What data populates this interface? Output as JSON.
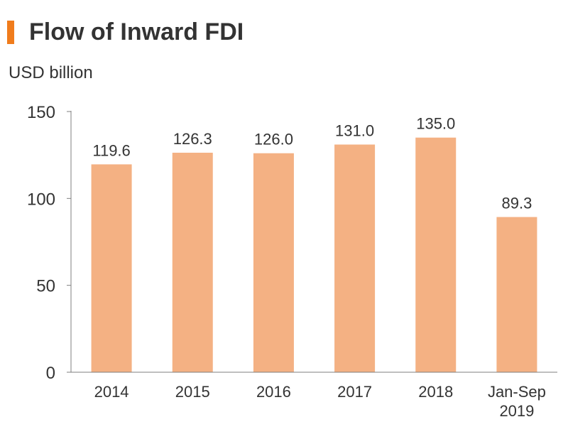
{
  "title": "Flow of Inward FDI",
  "colors": {
    "accent": "#f07c1c",
    "bar": "#f4b183",
    "axis": "#7f7f7f",
    "text": "#333333"
  },
  "chart_data": {
    "type": "bar",
    "title": "Flow of Inward FDI",
    "ylabel": "USD billion",
    "xlabel": "",
    "ylim": [
      0,
      150
    ],
    "yticks": [
      0,
      50,
      100,
      150
    ],
    "grid": false,
    "categories": [
      [
        "2014"
      ],
      [
        "2015"
      ],
      [
        "2016"
      ],
      [
        "2017"
      ],
      [
        "2018"
      ],
      [
        "Jan-Sep",
        "2019"
      ]
    ],
    "values": [
      119.6,
      126.3,
      126.0,
      131.0,
      135.0,
      89.3
    ],
    "value_labels": [
      "119.6",
      "126.3",
      "126.0",
      "131.0",
      "135.0",
      "89.3"
    ]
  }
}
